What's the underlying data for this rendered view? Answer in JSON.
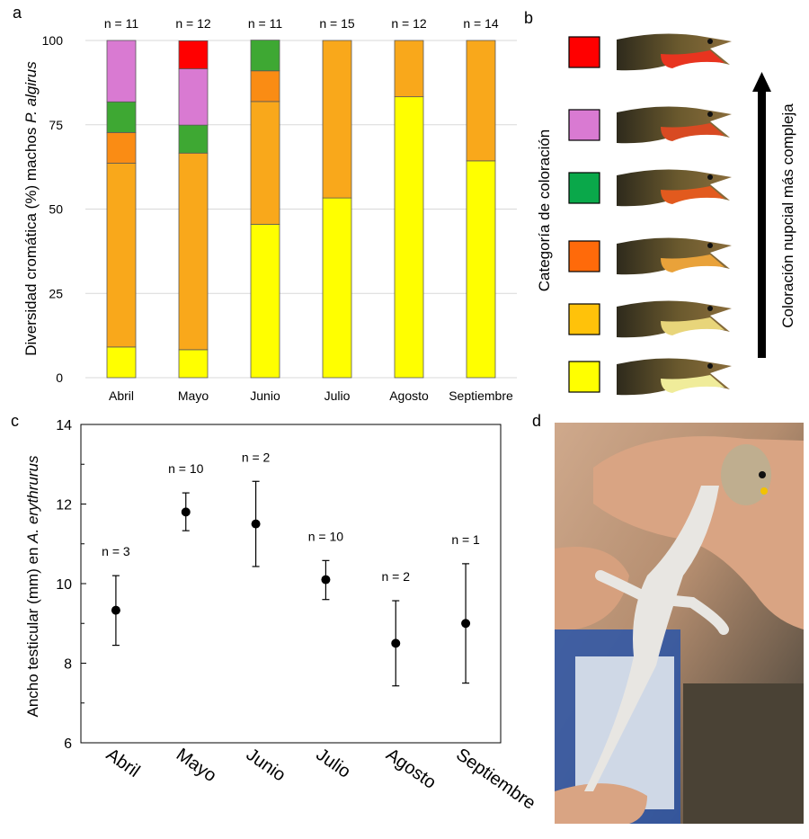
{
  "panels": {
    "a": "a",
    "b": "b",
    "c": "c",
    "d": "d"
  },
  "chart_data": [
    {
      "panel": "a",
      "type": "bar",
      "stacked": true,
      "ylabel_prefix": "Diversidad cromática (%) machos ",
      "ylabel_species": "P. algirus",
      "ylim": [
        0,
        100
      ],
      "yticks": [
        "0",
        "25",
        "50",
        "75",
        "100"
      ],
      "categories": [
        "Abril",
        "Mayo",
        "Junio",
        "Julio",
        "Agosto",
        "Septiembre"
      ],
      "sample_sizes": [
        "n = 11",
        "n = 12",
        "n = 11",
        "n = 15",
        "n = 12",
        "n = 14"
      ],
      "series": [
        {
          "name": "amarillo",
          "color": "#ffff00",
          "values": [
            9.1,
            8.3,
            45.5,
            53.3,
            83.3,
            64.3
          ]
        },
        {
          "name": "naranja claro",
          "color": "#f9a81b",
          "values": [
            54.5,
            58.3,
            36.4,
            46.7,
            16.7,
            35.7
          ]
        },
        {
          "name": "naranja",
          "color": "#fa8c14",
          "values": [
            9.1,
            0,
            9.1,
            0,
            0,
            0
          ]
        },
        {
          "name": "verde",
          "color": "#3ea833",
          "values": [
            9.1,
            8.3,
            9.1,
            0,
            0,
            0
          ]
        },
        {
          "name": "rosa",
          "color": "#d97ad2",
          "values": [
            18.2,
            16.7,
            0,
            0,
            0,
            0
          ]
        },
        {
          "name": "rojo",
          "color": "#ff0000",
          "values": [
            0,
            8.3,
            0,
            0,
            0,
            0
          ]
        }
      ]
    },
    {
      "panel": "b",
      "type": "legend",
      "ylabel": "Categoría de coloración",
      "arrow_label": "Coloración nupcial más compleja",
      "swatches": [
        "#ff0000",
        "#d97ad2",
        "#0aa84a",
        "#ff6a0a",
        "#ffc20a",
        "#ffff00"
      ]
    },
    {
      "panel": "c",
      "type": "scatter",
      "error_bars": true,
      "ylabel_prefix": "Ancho testicular (mm) en ",
      "ylabel_species": "A. erythrurus",
      "ylim": [
        6,
        14
      ],
      "yticks": [
        "6",
        "8",
        "10",
        "12",
        "14"
      ],
      "categories": [
        "Abril",
        "Mayo",
        "Junio",
        "Julio",
        "Agosto",
        "Septiembre"
      ],
      "means": [
        9.33,
        11.8,
        11.5,
        10.1,
        8.5,
        9.0
      ],
      "lower": [
        8.45,
        11.33,
        10.43,
        9.6,
        7.43,
        7.5
      ],
      "upper": [
        10.2,
        12.28,
        12.57,
        10.58,
        9.57,
        10.5
      ],
      "sample_sizes": [
        "n = 3",
        "n = 10",
        "n = 2",
        "n = 10",
        "n = 2",
        "n = 1"
      ]
    }
  ]
}
